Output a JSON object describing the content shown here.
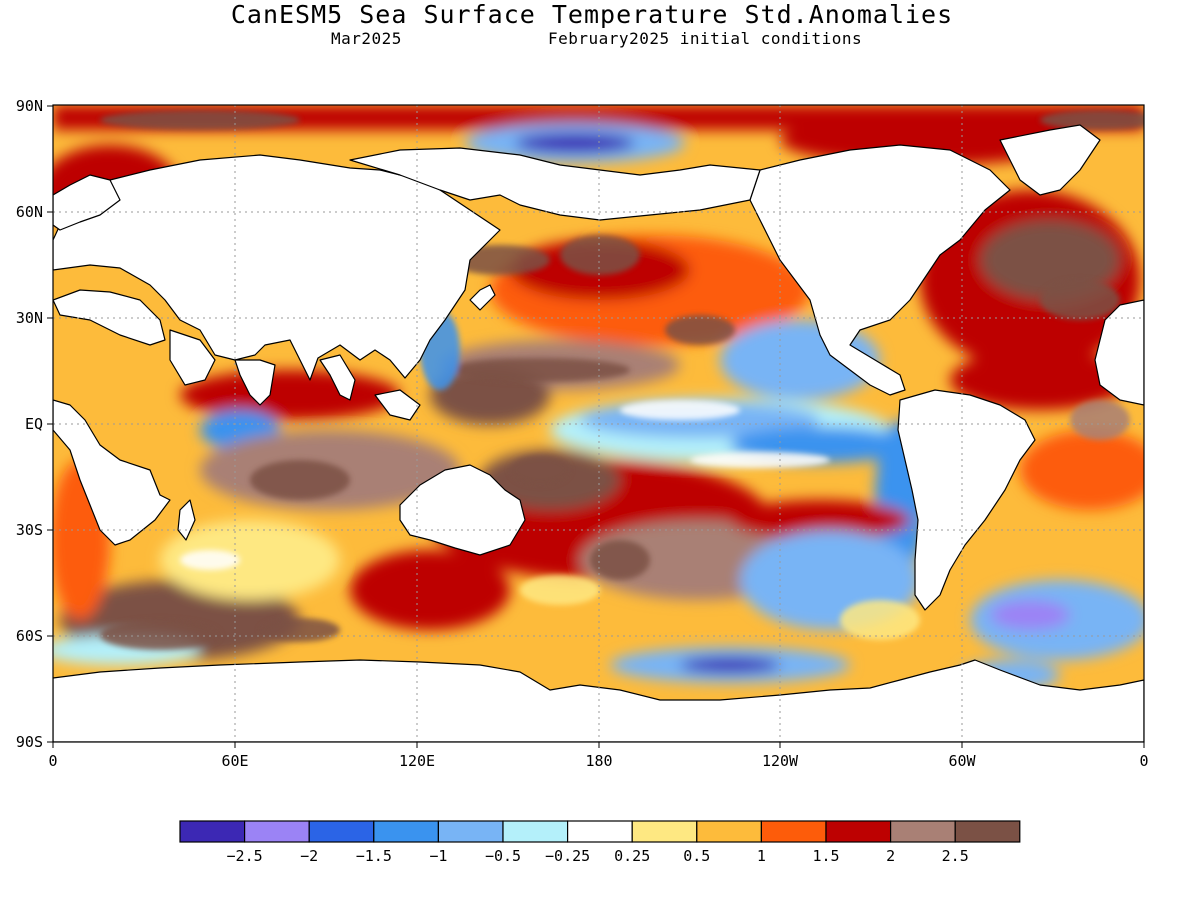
{
  "header": {
    "title": "CanESM5 Sea Surface Temperature Std.Anomalies",
    "valid_month": "Mar2025",
    "initial_conditions": "February2025 initial conditions"
  },
  "map": {
    "projection": "equirectangular",
    "lon_range": [
      0,
      360
    ],
    "lat_range": [
      -90,
      90
    ],
    "grid": true,
    "lat_ticks": [
      "90N",
      "60N",
      "30N",
      "EQ",
      "30S",
      "60S",
      "90S"
    ],
    "lon_ticks": [
      "0",
      "60E",
      "120E",
      "180",
      "120W",
      "60W",
      "0"
    ]
  },
  "colorbar": {
    "boundaries": [
      "-2.5",
      "-2",
      "-1.5",
      "-1",
      "-0.5",
      "-0.25",
      "0.25",
      "0.5",
      "1",
      "1.5",
      "2",
      "2.5"
    ],
    "colors": [
      "#3c28b4",
      "#9b83f5",
      "#2b64e6",
      "#3a93ef",
      "#78b4f5",
      "#b4f0fa",
      "#ffffff",
      "#fee882",
      "#fdbb3b",
      "#fd5c0a",
      "#bd0101",
      "#a98075",
      "#7b5145"
    ]
  },
  "chart_data": {
    "type": "heatmap",
    "title": "CanESM5 Sea Surface Temperature Std.Anomalies",
    "subtitle": "Mar2025 — February2025 initial conditions",
    "xlim": [
      0,
      360
    ],
    "ylim": [
      -90,
      90
    ],
    "levels": [
      -2.5,
      -2,
      -1.5,
      -1,
      -0.5,
      -0.25,
      0.25,
      0.5,
      1,
      1.5,
      2,
      2.5
    ],
    "regions": [
      {
        "lon": [
          0,
          60
        ],
        "lat": [
          80,
          90
        ],
        "value": 2.6
      },
      {
        "lon": [
          150,
          200
        ],
        "lat": [
          78,
          88
        ],
        "value": -2.0
      },
      {
        "lon": [
          130,
          250
        ],
        "lat": [
          22,
          60
        ],
        "value": 1.6
      },
      {
        "lon": [
          125,
          165
        ],
        "lat": [
          5,
          25
        ],
        "value": 2.5
      },
      {
        "lon": [
          185,
          265
        ],
        "lat": [
          -10,
          10
        ],
        "value": -0.5
      },
      {
        "lon": [
          250,
          270
        ],
        "lat": [
          -18,
          2
        ],
        "value": -1.5
      },
      {
        "lon": [
          280,
          290
        ],
        "lat": [
          -30,
          -5
        ],
        "value": -2.5
      },
      {
        "lon": [
          300,
          360
        ],
        "lat": [
          5,
          60
        ],
        "value": 2.3
      },
      {
        "lon": [
          40,
          110
        ],
        "lat": [
          -30,
          0
        ],
        "value": 2.0
      },
      {
        "lon": [
          110,
          240
        ],
        "lat": [
          -50,
          -10
        ],
        "value": 1.8
      },
      {
        "lon": [
          20,
          110
        ],
        "lat": [
          -65,
          -35
        ],
        "value": 2.5
      },
      {
        "lon": [
          200,
          260
        ],
        "lat": [
          -70,
          -60
        ],
        "value": -2.3
      },
      {
        "lon": [
          300,
          360
        ],
        "lat": [
          -60,
          -40
        ],
        "value": -1.2
      },
      {
        "lon": [
          50,
          90
        ],
        "lat": [
          -15,
          5
        ],
        "value": -0.8
      }
    ]
  }
}
